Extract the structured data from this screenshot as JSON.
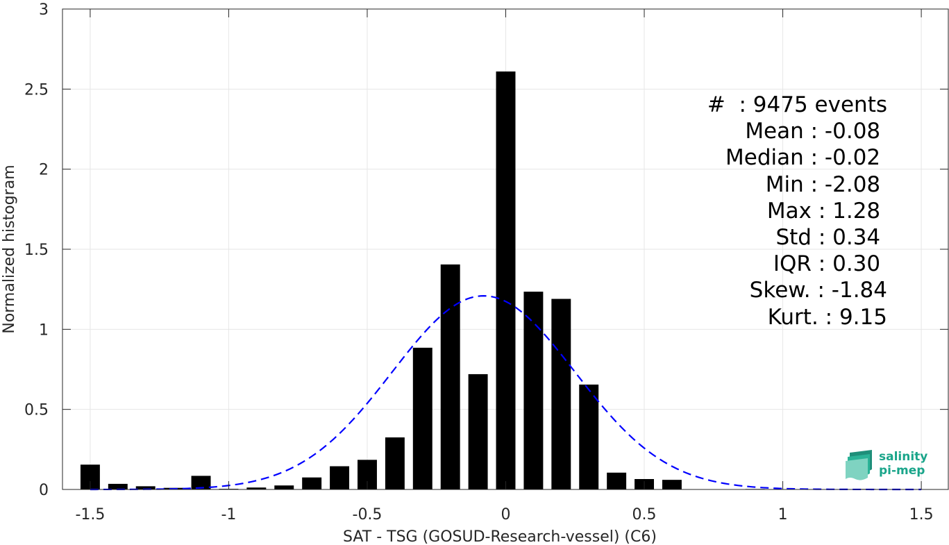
{
  "chart_data": {
    "type": "bar",
    "xlabel": "SAT - TSG (GOSUD-Research-vessel) (C6)",
    "ylabel": "Normalized histogram",
    "xlim": [
      -1.6,
      1.6
    ],
    "ylim": [
      0,
      3
    ],
    "xticks": [
      -1.5,
      -1,
      -0.5,
      0,
      0.5,
      1,
      1.5
    ],
    "xtick_labels": [
      "-1.5",
      "-1",
      "-0.5",
      "0",
      "0.5",
      "1",
      "1.5"
    ],
    "yticks": [
      0,
      0.5,
      1,
      1.5,
      2,
      2.5,
      3
    ],
    "ytick_labels": [
      "0",
      "0.5",
      "1",
      "1.5",
      "2",
      "2.5",
      "3"
    ],
    "grid": true,
    "bar_color": "#000000",
    "bin_width": 0.1,
    "bars": {
      "x": [
        -1.5,
        -1.4,
        -1.3,
        -1.2,
        -1.1,
        -1.0,
        -0.9,
        -0.8,
        -0.7,
        -0.6,
        -0.5,
        -0.4,
        -0.3,
        -0.2,
        -0.1,
        0.0,
        0.1,
        0.2,
        0.3,
        0.4,
        0.5,
        0.6,
        0.7,
        0.8,
        0.9,
        1.0,
        1.1,
        1.2,
        1.3,
        1.4,
        1.5
      ],
      "values": [
        0.155,
        0.035,
        0.02,
        0.01,
        0.085,
        0.004,
        0.012,
        0.025,
        0.075,
        0.145,
        0.185,
        0.325,
        0.885,
        1.405,
        0.72,
        2.61,
        1.235,
        1.19,
        0.655,
        0.105,
        0.065,
        0.06,
        0,
        0,
        0.003,
        0,
        0,
        0,
        0.003,
        0,
        0
      ]
    },
    "fit_curve": {
      "type": "gaussian",
      "style": "dashed",
      "color": "#0000ff",
      "mean": -0.08,
      "std": 0.33
    }
  },
  "stats": [
    "#  : 9475 events",
    "Mean : -0.08 ",
    "Median : -0.02 ",
    "Min : -2.08 ",
    "Max : 1.28 ",
    "Std : 0.34 ",
    "IQR : 0.30 ",
    "Skew. : -1.84",
    "Kurt. : 9.15"
  ],
  "logo": {
    "line1": "salinity",
    "line2": "pi-mep",
    "color": "#1aa58a"
  }
}
